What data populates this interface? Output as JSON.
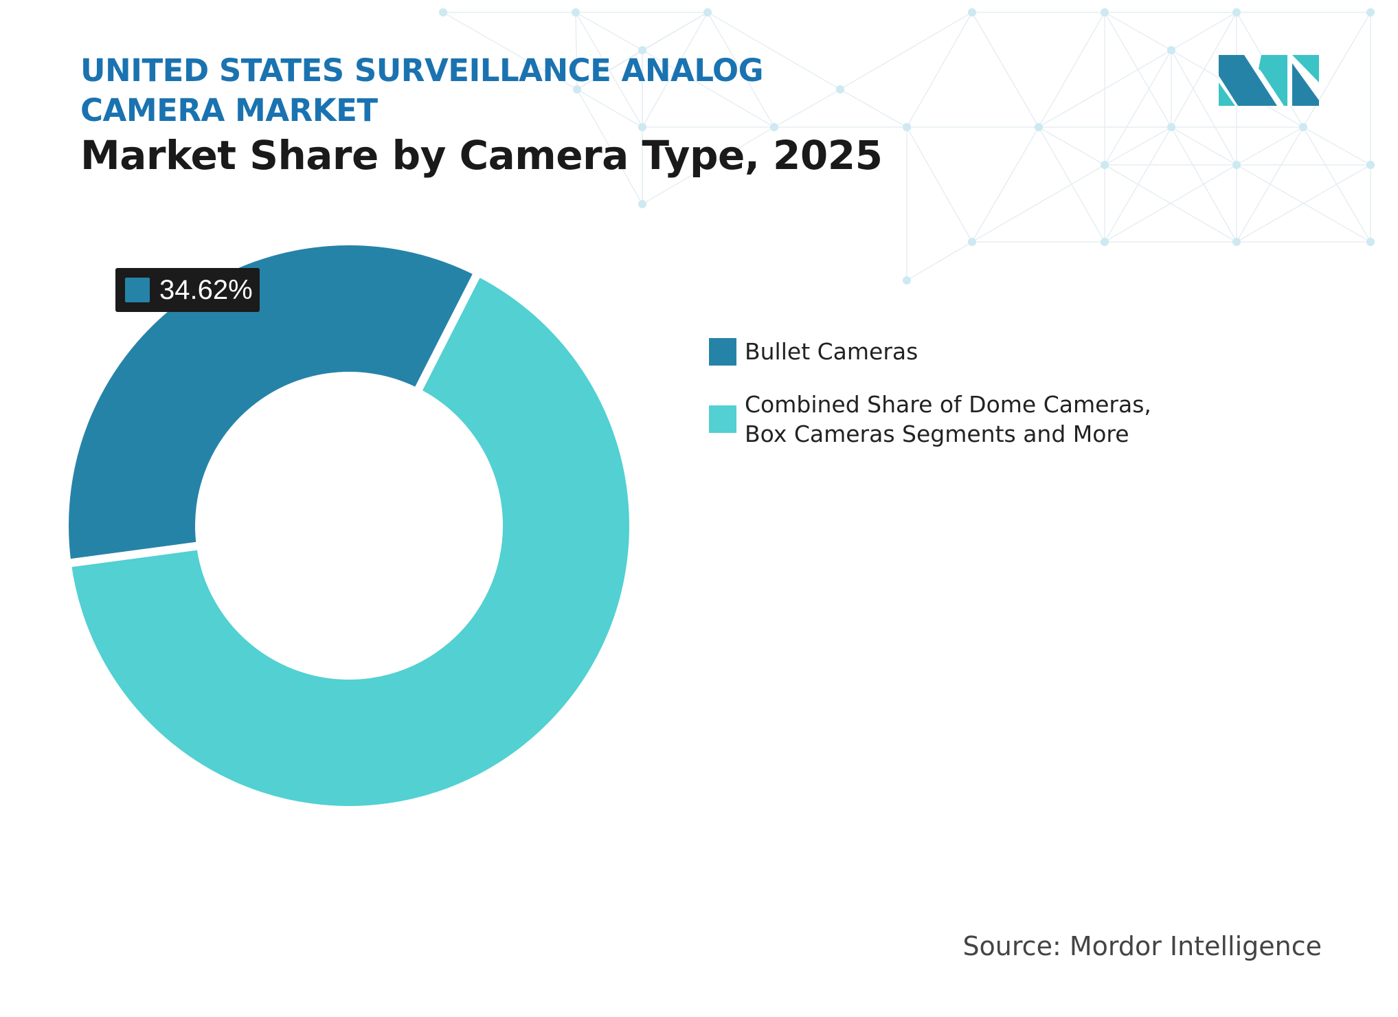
{
  "header": {
    "title": "UNITED STATES SURVEILLANCE ANALOG CAMERA MARKET",
    "subtitle": "Market Share by Camera Type, 2025"
  },
  "chart_data": {
    "type": "pie",
    "variant": "donut",
    "series": [
      {
        "name": "Bullet Cameras",
        "value": 34.62,
        "color": "#2683a8"
      },
      {
        "name": "Combined Share of Dome Cameras, Box Cameras Segments and More",
        "value": 65.38,
        "color": "#52d0d2"
      }
    ],
    "data_labels": [
      "34.62%"
    ],
    "legend_position": "right"
  },
  "footer": {
    "source": "Source: Mordor Intelligence"
  },
  "colors": {
    "title": "#1a73b0",
    "logo_dark": "#2683a8",
    "logo_light": "#3cc3c6"
  }
}
